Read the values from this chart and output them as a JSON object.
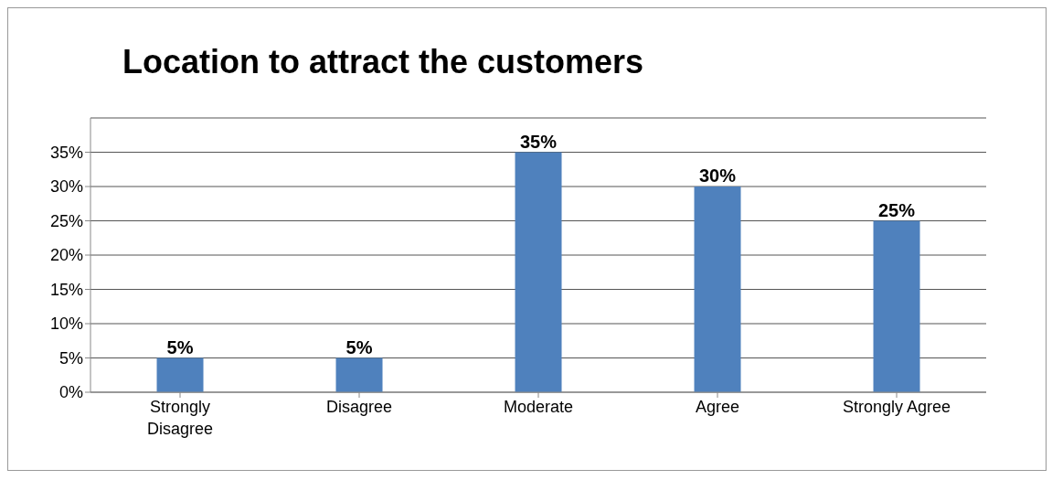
{
  "chart_data": {
    "type": "bar",
    "title": "Location to attract the customers",
    "categories": [
      "Strongly Disagree",
      "Disagree",
      "Moderate",
      "Agree",
      "Strongly Agree"
    ],
    "values": [
      5,
      5,
      35,
      30,
      25
    ],
    "color": "#4f81bd",
    "value_labels": [
      "5%",
      "5%",
      "35%",
      "30%",
      "25%"
    ],
    "ylim": [
      0,
      40
    ],
    "yticks": [
      {
        "value": 0,
        "label": "0%"
      },
      {
        "value": 5,
        "label": "5%"
      },
      {
        "value": 10,
        "label": "10%"
      },
      {
        "value": 15,
        "label": "15%"
      },
      {
        "value": 20,
        "label": "20%"
      },
      {
        "value": 25,
        "label": "25%"
      },
      {
        "value": 30,
        "label": "30%"
      },
      {
        "value": 35,
        "label": "35%"
      }
    ],
    "grid": "y",
    "legend": false
  }
}
